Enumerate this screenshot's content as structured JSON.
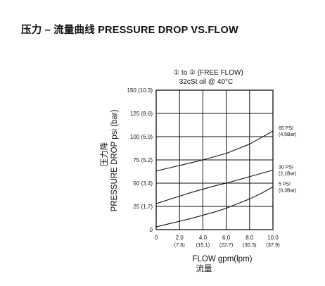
{
  "header": {
    "title": "压力 – 流量曲线 PRESSURE DROP VS.FLOW"
  },
  "chart_data": {
    "type": "line",
    "title": "① to ②  (FREE FLOW)",
    "subtitle": "32cSt oil @ 40°C",
    "xlabel": "FLOW gpm(lpm)",
    "xlabel_cn": "流量",
    "ylabel": "PRESSURE DROP psi (bar)",
    "ylabel_cn": "压力降",
    "xlim": [
      0,
      10
    ],
    "ylim": [
      0,
      150
    ],
    "grid": true,
    "x_ticks": [
      {
        "value": 0,
        "label": "0",
        "sub": ""
      },
      {
        "value": 2,
        "label": "2.0",
        "sub": "(7.6)"
      },
      {
        "value": 4,
        "label": "4.0",
        "sub": "(15.1)"
      },
      {
        "value": 6,
        "label": "6.0",
        "sub": "(22.7)"
      },
      {
        "value": 8,
        "label": "8.0",
        "sub": "(30.3)"
      },
      {
        "value": 10,
        "label": "10.0",
        "sub": "(37.9)"
      }
    ],
    "y_ticks": [
      {
        "value": 0,
        "label": "0"
      },
      {
        "value": 25,
        "label": "25 (1.7)"
      },
      {
        "value": 50,
        "label": "50 (3.4)"
      },
      {
        "value": 75,
        "label": "75 (5.2)"
      },
      {
        "value": 100,
        "label": "100 (6.9)"
      },
      {
        "value": 125,
        "label": "125 (8.6)"
      },
      {
        "value": 150,
        "label": "150 (10.3)"
      }
    ],
    "series": [
      {
        "name": "65 PSI",
        "name_sub": "(4,5Bar)",
        "x": [
          0,
          1,
          2,
          3,
          4,
          5,
          6,
          7,
          8,
          9,
          10
        ],
        "y": [
          63,
          66,
          69,
          72,
          75,
          78.5,
          82,
          87,
          92,
          99,
          106
        ]
      },
      {
        "name": "30 PSI",
        "name_sub": "(2,1Bar)",
        "x": [
          0,
          1,
          2,
          3,
          4,
          5,
          6,
          7,
          8,
          9,
          10
        ],
        "y": [
          28,
          32,
          36,
          40,
          43.5,
          47,
          50,
          53.5,
          57,
          60.5,
          64
        ]
      },
      {
        "name": "5 PSI",
        "name_sub": "(0,3Bar)",
        "x": [
          0,
          1,
          2,
          3,
          4,
          5,
          6,
          7,
          8,
          9,
          10
        ],
        "y": [
          3,
          6,
          9,
          12,
          15.5,
          19,
          23,
          28,
          33,
          39,
          46
        ]
      }
    ]
  }
}
